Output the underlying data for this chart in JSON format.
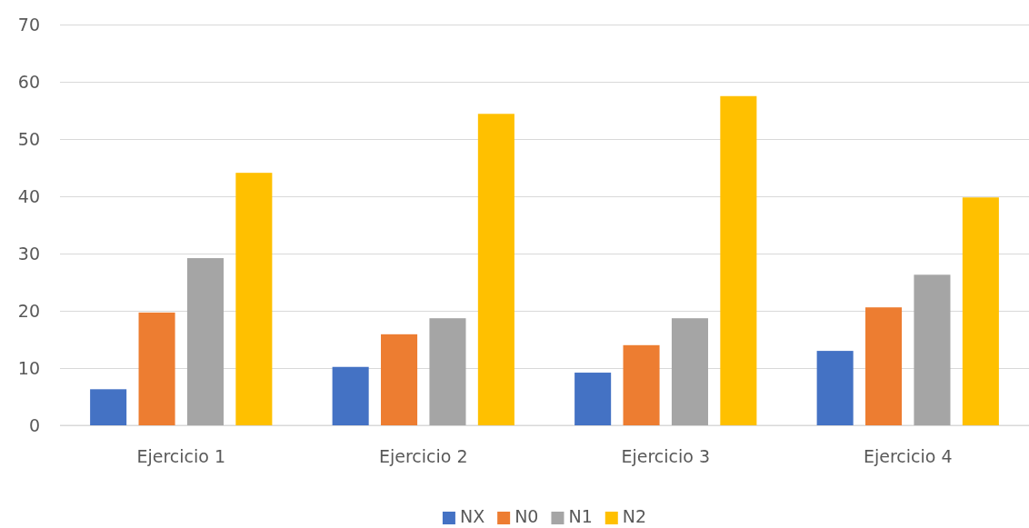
{
  "chart_data": {
    "type": "bar",
    "categories": [
      "Ejercicio 1",
      "Ejercicio 2",
      "Ejercicio 3",
      "Ejercicio 4"
    ],
    "series": [
      {
        "name": "NX",
        "color": "#4472c4",
        "values": [
          6.3,
          10.2,
          9.2,
          13.0
        ]
      },
      {
        "name": "N0",
        "color": "#ed7d31",
        "values": [
          19.7,
          15.9,
          14.0,
          20.6
        ]
      },
      {
        "name": "N1",
        "color": "#a5a5a5",
        "values": [
          29.2,
          18.7,
          18.7,
          26.3
        ]
      },
      {
        "name": "N2",
        "color": "#ffc000",
        "values": [
          44.1,
          54.4,
          57.5,
          39.8
        ]
      }
    ],
    "ylim": [
      0,
      70
    ],
    "yticks": [
      0,
      10,
      20,
      30,
      40,
      50,
      60,
      70
    ],
    "grid": "y",
    "legend": "bottom"
  }
}
